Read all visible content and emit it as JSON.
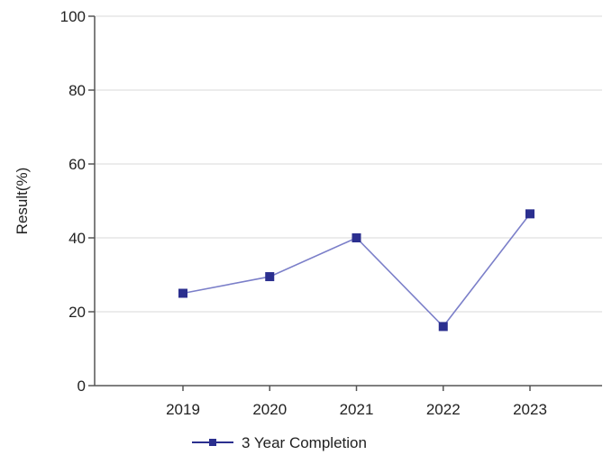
{
  "chart_data": {
    "type": "line",
    "categories": [
      "2019",
      "2020",
      "2021",
      "2022",
      "2023"
    ],
    "series": [
      {
        "name": "3 Year Completion",
        "values": [
          25,
          29.5,
          40,
          16,
          46.5
        ],
        "color": "#2b2f8f",
        "line_color": "#7b7fc9"
      }
    ],
    "xlabel": "",
    "ylabel": "Result(%)",
    "ylim": [
      0,
      100
    ],
    "yticks": [
      "0",
      "20",
      "40",
      "60",
      "80",
      "100"
    ],
    "grid": "horizontal",
    "legend": "bottom"
  }
}
